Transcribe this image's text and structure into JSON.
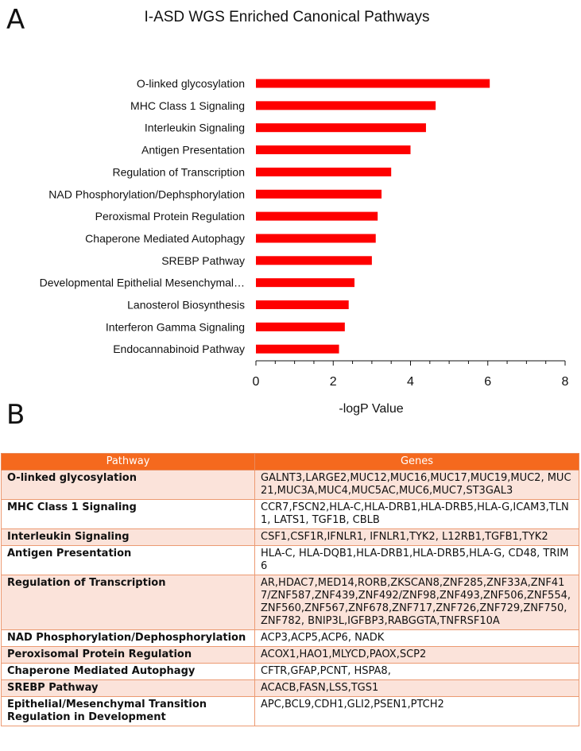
{
  "panel_labels": {
    "a": "A",
    "b": "B"
  },
  "colors": {
    "bar": "#fe0000",
    "header": "#f5691e",
    "row_alt": "#fbe3da",
    "border": "#ec9a72"
  },
  "chart_data": {
    "type": "bar",
    "orientation": "horizontal",
    "title": "I-ASD WGS Enriched Canonical Pathways",
    "xlabel": "-logP Value",
    "ylabel": "",
    "xlim": [
      0,
      8
    ],
    "x_ticks": [
      "0",
      "2",
      "4",
      "6",
      "8"
    ],
    "grid": false,
    "categories": [
      "O-linked glycosylation",
      "MHC Class 1 Signaling",
      "Interleukin Signaling",
      "Antigen Presentation",
      "Regulation of Transcription",
      "NAD Phosphorylation/Dephsphorylation",
      "Peroxismal Protein Regulation",
      "Chaperone Mediated Autophagy",
      "SREBP Pathway",
      "Developmental Epithelial Mesenchymal…",
      "Lanosterol Biosynthesis",
      "Interferon Gamma Signaling",
      "Endocannabinoid Pathway"
    ],
    "values": [
      6.05,
      4.65,
      4.4,
      4.0,
      3.5,
      3.25,
      3.15,
      3.1,
      3.0,
      2.55,
      2.4,
      2.3,
      2.15
    ]
  },
  "table": {
    "headers": [
      "Pathway",
      "Genes"
    ],
    "rows": [
      {
        "pathway": "O-linked glycosylation",
        "genes": "GALNT3,LARGE2,MUC12,MUC16,MUC17,MUC19,MUC2, MUC21,MUC3A,MUC4,MUC5AC,MUC6,MUC7,ST3GAL3"
      },
      {
        "pathway": "MHC Class 1 Signaling",
        "genes": "CCR7,FSCN2,HLA-C,HLA-DRB1,HLA-DRB5,HLA-G,ICAM3,TLN1, LATS1, TGF1B, CBLB"
      },
      {
        "pathway": "Interleukin Signaling",
        "genes": "CSF1,CSF1R,IFNLR1, IFNLR1,TYK2, L12RB1,TGFB1,TYK2"
      },
      {
        "pathway": "Antigen Presentation",
        "genes": "HLA-C, HLA-DQB1,HLA-DRB1,HLA-DRB5,HLA-G, CD48, TRIM6"
      },
      {
        "pathway": "Regulation of Transcription",
        "genes": "AR,HDAC7,MED14,RORB,ZKSCAN8,ZNF285,ZNF33A,ZNF417/ZNF587,ZNF439,ZNF492/ZNF98,ZNF493,ZNF506,ZNF554,ZNF560,ZNF567,ZNF678,ZNF717,ZNF726,ZNF729,ZNF750,ZNF782, BNIP3L,IGFBP3,RABGGTA,TNFRSF10A"
      },
      {
        "pathway": "NAD Phosphorylation/Dephosphorylation",
        "genes": "ACP3,ACP5,ACP6, NADK"
      },
      {
        "pathway": "Peroxisomal Protein Regulation",
        "genes": "ACOX1,HAO1,MLYCD,PAOX,SCP2"
      },
      {
        "pathway": "Chaperone Mediated Autophagy",
        "genes": "CFTR,GFAP,PCNT, HSPA8,"
      },
      {
        "pathway": "SREBP Pathway",
        "genes": "ACACB,FASN,LSS,TGS1"
      },
      {
        "pathway": "Epithelial/Mesenchymal Transition Regulation in Development",
        "genes": "APC,BCL9,CDH1,GLI2,PSEN1,PTCH2"
      }
    ]
  }
}
